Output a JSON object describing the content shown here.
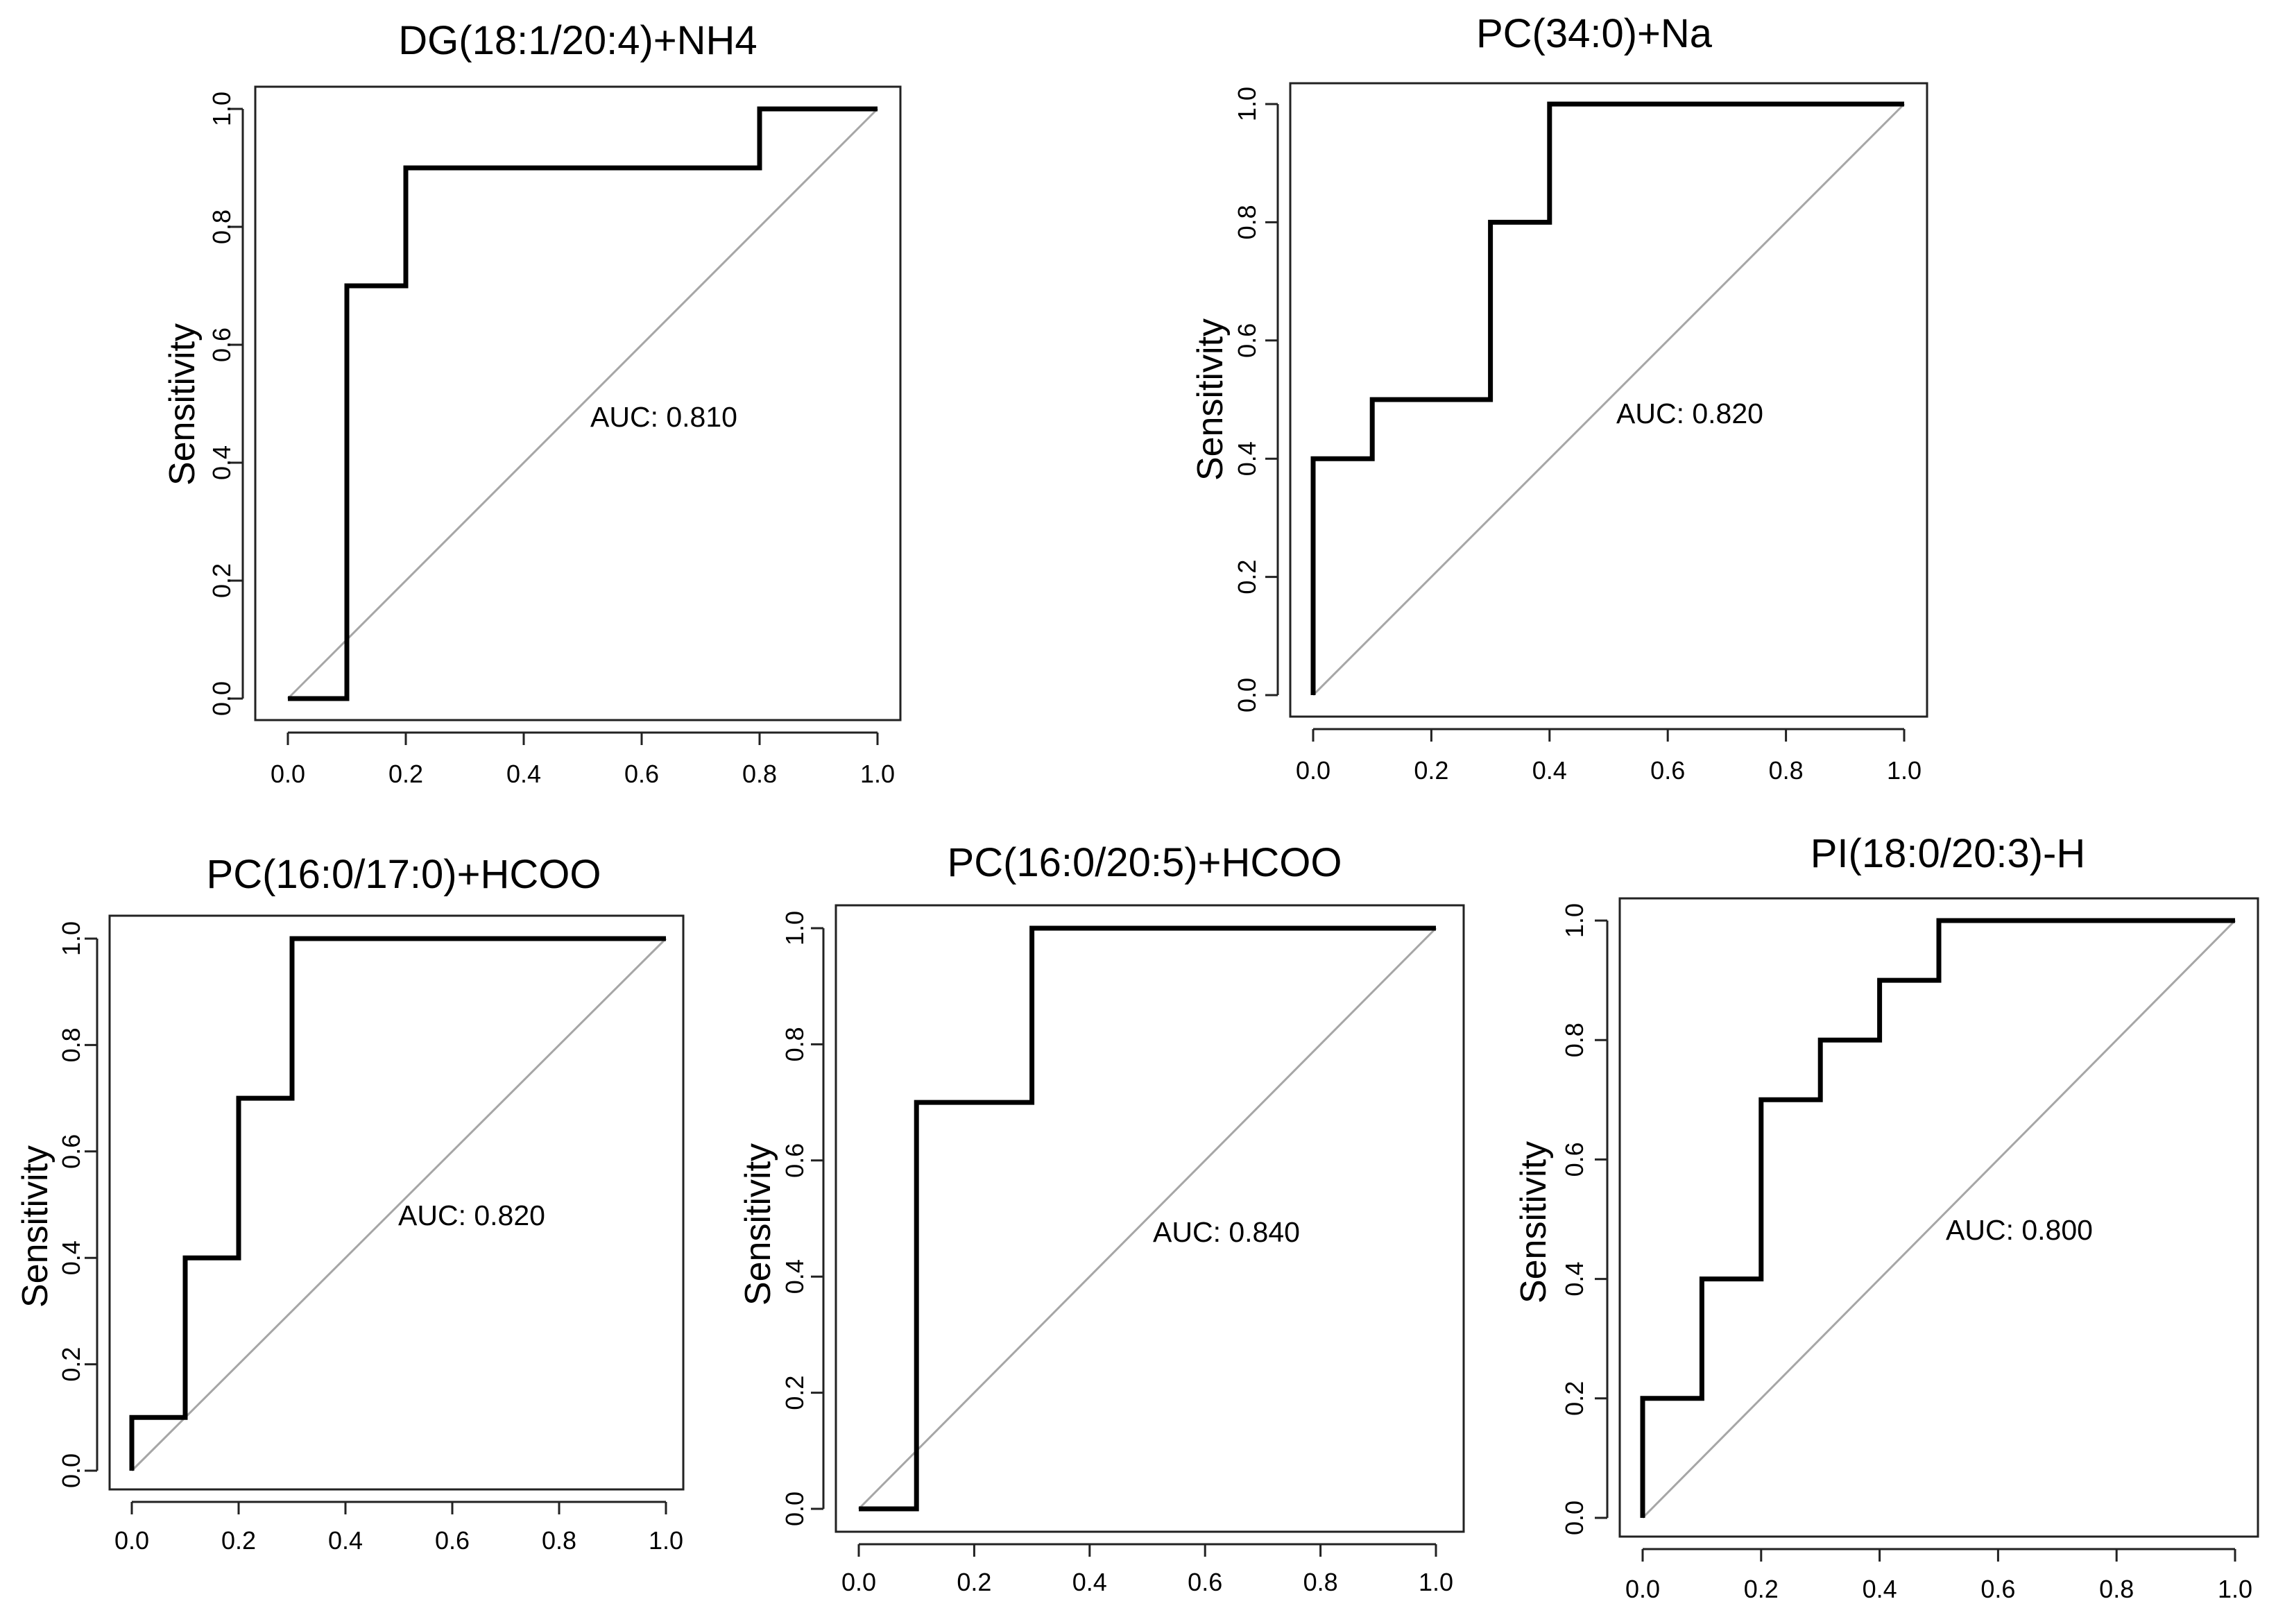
{
  "chart_data": [
    {
      "type": "line",
      "title": "DG(18:1/20:4)+NH4",
      "xlabel": "",
      "ylabel": "Sensitivity",
      "xlim": [
        0,
        1
      ],
      "ylim": [
        0,
        1
      ],
      "x_ticks": [
        "0.0",
        "0.2",
        "0.4",
        "0.6",
        "0.8",
        "1.0"
      ],
      "y_ticks": [
        "0.0",
        "0.2",
        "0.4",
        "0.6",
        "0.8",
        "1.0"
      ],
      "annotation": "AUC: 0.810",
      "diagonal_reference": true,
      "series": [
        {
          "name": "ROC",
          "x": [
            0,
            0.1,
            0.1,
            0.2,
            0.2,
            0.8,
            0.8,
            1.0
          ],
          "y": [
            0,
            0,
            0.7,
            0.7,
            0.9,
            0.9,
            1.0,
            1.0
          ]
        }
      ]
    },
    {
      "type": "line",
      "title": "PC(34:0)+Na",
      "xlabel": "",
      "ylabel": "Sensitivity",
      "xlim": [
        0,
        1
      ],
      "ylim": [
        0,
        1
      ],
      "x_ticks": [
        "0.0",
        "0.2",
        "0.4",
        "0.6",
        "0.8",
        "1.0"
      ],
      "y_ticks": [
        "0.0",
        "0.2",
        "0.4",
        "0.6",
        "0.8",
        "1.0"
      ],
      "annotation": "AUC: 0.820",
      "diagonal_reference": true,
      "series": [
        {
          "name": "ROC",
          "x": [
            0,
            0,
            0.1,
            0.1,
            0.3,
            0.3,
            0.4,
            0.4,
            1.0
          ],
          "y": [
            0,
            0.4,
            0.4,
            0.5,
            0.5,
            0.8,
            0.8,
            1.0,
            1.0
          ]
        }
      ]
    },
    {
      "type": "line",
      "title": "PC(16:0/17:0)+HCOO",
      "xlabel": "",
      "ylabel": "Sensitivity",
      "xlim": [
        0,
        1
      ],
      "ylim": [
        0,
        1
      ],
      "x_ticks": [
        "0.0",
        "0.2",
        "0.4",
        "0.6",
        "0.8",
        "1.0"
      ],
      "y_ticks": [
        "0.0",
        "0.2",
        "0.4",
        "0.6",
        "0.8",
        "1.0"
      ],
      "annotation": "AUC: 0.820",
      "diagonal_reference": true,
      "series": [
        {
          "name": "ROC",
          "x": [
            0,
            0,
            0.1,
            0.1,
            0.2,
            0.2,
            0.3,
            0.3,
            1.0
          ],
          "y": [
            0,
            0.1,
            0.1,
            0.4,
            0.4,
            0.7,
            0.7,
            1.0,
            1.0
          ]
        }
      ]
    },
    {
      "type": "line",
      "title": "PC(16:0/20:5)+HCOO",
      "xlabel": "",
      "ylabel": "Sensitivity",
      "xlim": [
        0,
        1
      ],
      "ylim": [
        0,
        1
      ],
      "x_ticks": [
        "0.0",
        "0.2",
        "0.4",
        "0.6",
        "0.8",
        "1.0"
      ],
      "y_ticks": [
        "0.0",
        "0.2",
        "0.4",
        "0.6",
        "0.8",
        "1.0"
      ],
      "annotation": "AUC: 0.840",
      "diagonal_reference": true,
      "series": [
        {
          "name": "ROC",
          "x": [
            0,
            0.1,
            0.1,
            0.3,
            0.3,
            1.0
          ],
          "y": [
            0,
            0,
            0.7,
            0.7,
            1.0,
            1.0
          ]
        }
      ]
    },
    {
      "type": "line",
      "title": "PI(18:0/20:3)-H",
      "xlabel": "",
      "ylabel": "Sensitivity",
      "xlim": [
        0,
        1
      ],
      "ylim": [
        0,
        1
      ],
      "x_ticks": [
        "0.0",
        "0.2",
        "0.4",
        "0.6",
        "0.8",
        "1.0"
      ],
      "y_ticks": [
        "0.0",
        "0.2",
        "0.4",
        "0.6",
        "0.8",
        "1.0"
      ],
      "annotation": "AUC: 0.800",
      "diagonal_reference": true,
      "series": [
        {
          "name": "ROC",
          "x": [
            0,
            0,
            0.1,
            0.1,
            0.2,
            0.2,
            0.3,
            0.3,
            0.4,
            0.4,
            0.5,
            0.5,
            1.0
          ],
          "y": [
            0,
            0.2,
            0.2,
            0.4,
            0.4,
            0.7,
            0.7,
            0.8,
            0.8,
            0.9,
            0.9,
            1.0,
            1.0
          ]
        }
      ]
    }
  ]
}
